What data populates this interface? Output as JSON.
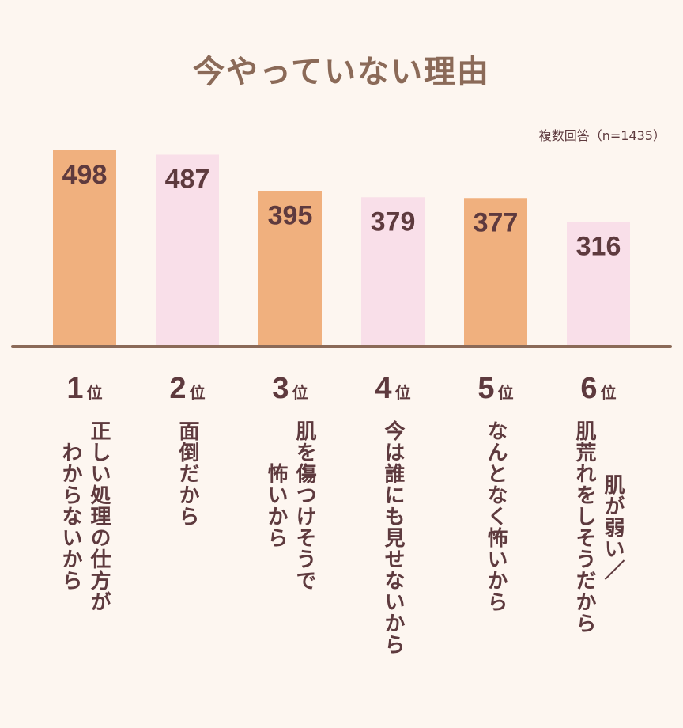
{
  "chart_data": {
    "type": "bar",
    "title": "今やっていない理由",
    "note": "複数回答（n=1435）",
    "categories": [
      "正しい処理の仕方が\nわからないから",
      "面倒だから",
      "肌を傷つけそうで\n怖いから",
      "今は誰にも見せないから",
      "なんとなく怖いから",
      "肌が弱い／\n肌荒れをしそうだから"
    ],
    "ranks": [
      "1",
      "2",
      "3",
      "4",
      "5",
      "6"
    ],
    "rank_suffix": "位",
    "values": [
      498,
      487,
      395,
      379,
      377,
      316
    ],
    "ylim": [
      0,
      500
    ],
    "colors": [
      "#f0b07e",
      "#f9dfe9",
      "#f0b07e",
      "#f9dfe9",
      "#f0b07e",
      "#f9dfe9"
    ],
    "axis_color": "#8b6a58",
    "text_color": "#5e3a3e"
  }
}
